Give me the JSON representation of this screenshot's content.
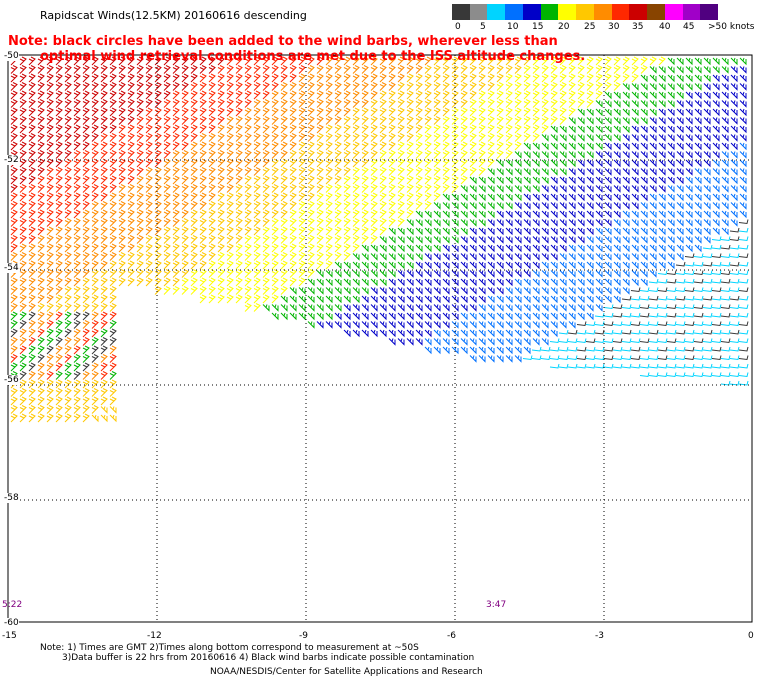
{
  "title": "Rapidscat Winds(12.5KM) 20160616 descending",
  "note": {
    "line1": "Note: black circles have been added to the wind barbs, wherever less than",
    "line2": "optimal wind retrieval conditions are met due to the ISS altitude changes."
  },
  "color_scale": {
    "colors": [
      "#383838",
      "#8c8c8c",
      "#00d4ff",
      "#0070ff",
      "#0000c8",
      "#00b400",
      "#ffff00",
      "#ffc800",
      "#ff8c00",
      "#ff2800",
      "#cc0000",
      "#884400",
      "#ff00ff",
      "#a000c8",
      "#500080"
    ],
    "labels": [
      "0",
      "5",
      "10",
      "15",
      "20",
      "25",
      "30",
      "35",
      "40",
      "45",
      ">50 knots"
    ]
  },
  "map": {
    "lat_labels": [
      "-50",
      "-52",
      "-54",
      "-56",
      "-58",
      "-60"
    ],
    "lon_labels": [
      "-15",
      "-12",
      "-9",
      "-6",
      "-3",
      "0"
    ],
    "time_labels": [
      {
        "text": "5:22",
        "lon": -15
      },
      {
        "text": "3:47",
        "lon": -5.4
      }
    ],
    "extent": {
      "lon": [
        -15,
        0
      ],
      "lat": [
        -60,
        -50
      ]
    }
  },
  "footer": {
    "line1": "Note: 1) Times are GMT 2)Times along bottom correspond to measurement at ~50S",
    "line2": "3)Data buffer is 22 hrs from 20160616 4) Black wind barbs indicate possible contamination",
    "credit": "NOAA/NESDIS/Center for Satellite Applications and Research"
  }
}
